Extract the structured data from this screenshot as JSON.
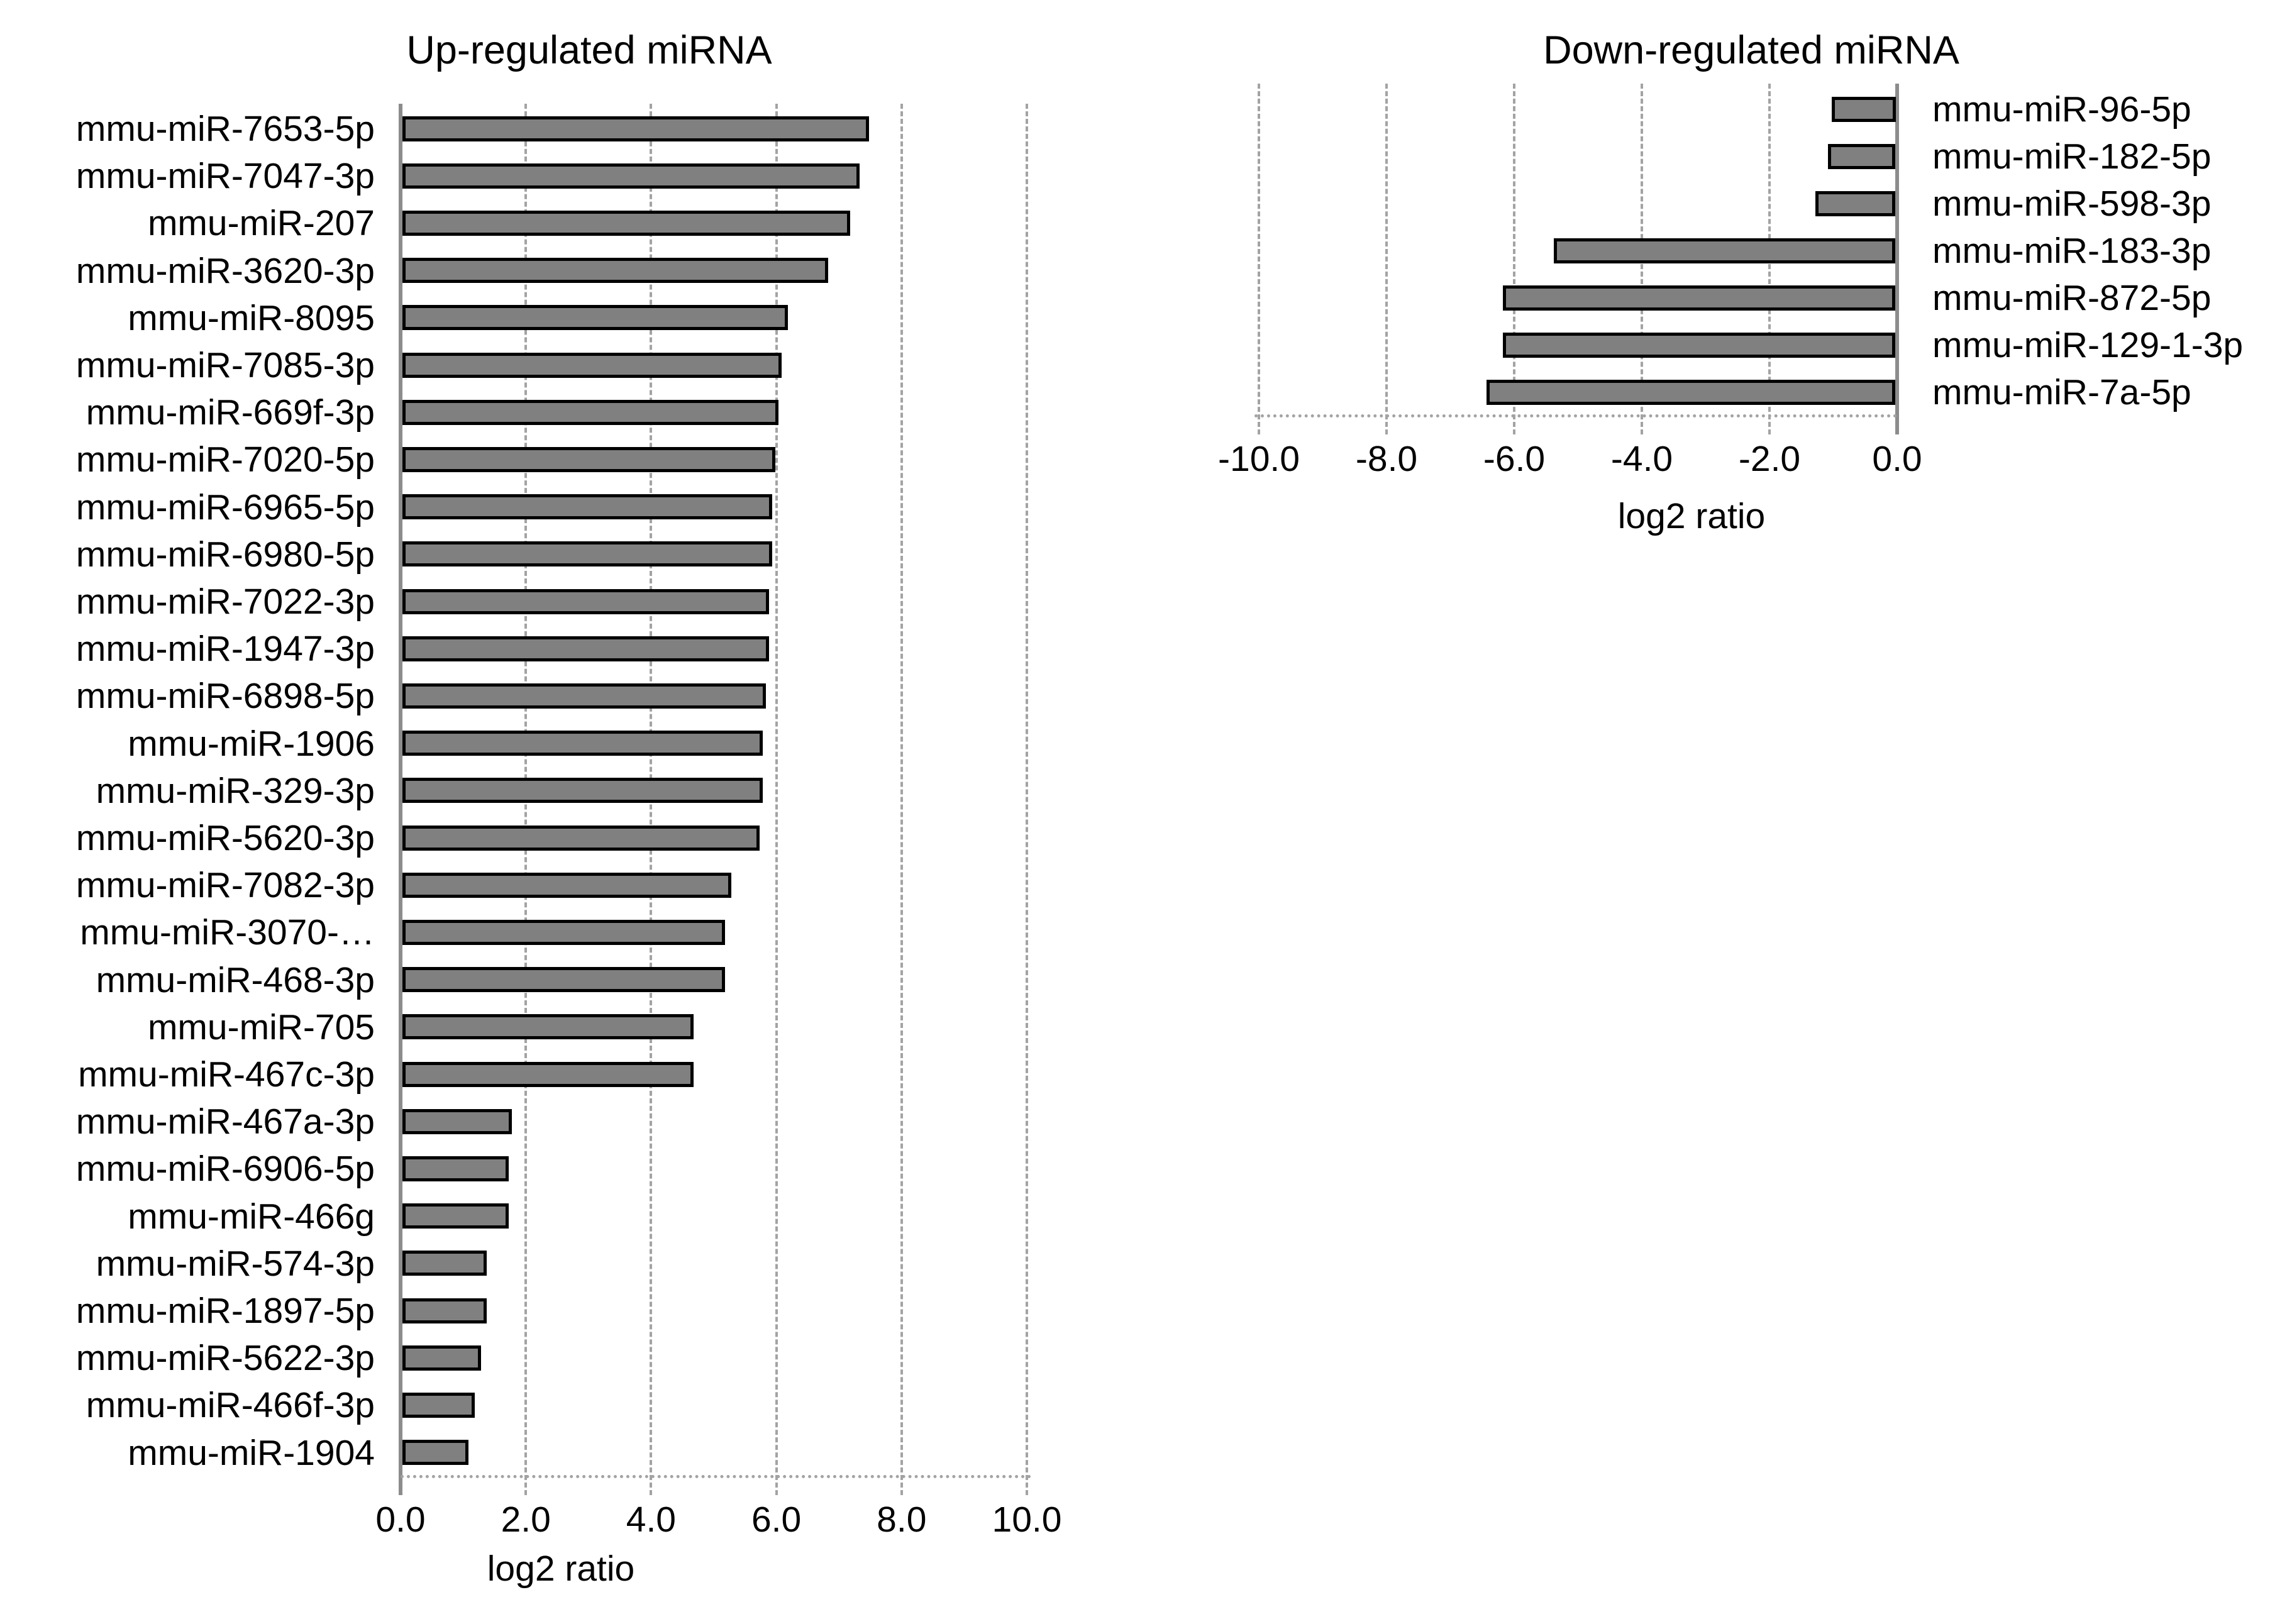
{
  "chart_data": [
    {
      "id": "up",
      "type": "bar",
      "orientation": "horizontal",
      "title": "Up-regulated miRNA",
      "xlabel": "log2 ratio",
      "xlim": [
        0,
        10
      ],
      "xticks": [
        0,
        2,
        4,
        6,
        8,
        10
      ],
      "xtick_labels": [
        "0.0",
        "2.0",
        "4.0",
        "6.0",
        "8.0",
        "10.0"
      ],
      "grid": "dashed-vertical",
      "legend": null,
      "categories": [
        "mmu-miR-7653-5p",
        "mmu-miR-7047-3p",
        "mmu-miR-207",
        "mmu-miR-3620-3p",
        "mmu-miR-8095",
        "mmu-miR-7085-3p",
        "mmu-miR-669f-3p",
        "mmu-miR-7020-5p",
        "mmu-miR-6965-5p",
        "mmu-miR-6980-5p",
        "mmu-miR-7022-3p",
        "mmu-miR-1947-3p",
        "mmu-miR-6898-5p",
        "mmu-miR-1906",
        "mmu-miR-329-3p",
        "mmu-miR-5620-3p",
        "mmu-miR-7082-3p",
        "mmu-miR-3070-…",
        "mmu-miR-468-3p",
        "mmu-miR-705",
        "mmu-miR-467c-3p",
        "mmu-miR-467a-3p",
        "mmu-miR-6906-5p",
        "mmu-miR-466g",
        "mmu-miR-574-3p",
        "mmu-miR-1897-5p",
        "mmu-miR-5622-3p",
        "mmu-miR-466f-3p",
        "mmu-miR-1904"
      ],
      "values": [
        7.45,
        7.3,
        7.15,
        6.8,
        6.15,
        6.05,
        6.0,
        5.95,
        5.9,
        5.9,
        5.85,
        5.85,
        5.8,
        5.75,
        5.75,
        5.7,
        5.25,
        5.15,
        5.15,
        4.65,
        4.65,
        1.75,
        1.7,
        1.7,
        1.35,
        1.35,
        1.25,
        1.15,
        1.05
      ]
    },
    {
      "id": "down",
      "type": "bar",
      "orientation": "horizontal",
      "title": "Down-regulated miRNA",
      "xlabel": "log2 ratio",
      "xlim": [
        -10,
        0
      ],
      "xticks": [
        -10,
        -8,
        -6,
        -4,
        -2,
        0
      ],
      "xtick_labels": [
        "-10.0",
        "-8.0",
        "-6.0",
        "-4.0",
        "-2.0",
        "0.0"
      ],
      "grid": "dashed-vertical",
      "legend": null,
      "categories": [
        "mmu-miR-96-5p",
        "mmu-miR-182-5p",
        "mmu-miR-598-3p",
        "mmu-miR-183-3p",
        "mmu-miR-872-5p",
        "mmu-miR-129-1-3p",
        "mmu-miR-7a-5p"
      ],
      "values": [
        -1.0,
        -1.05,
        -1.25,
        -5.35,
        -6.15,
        -6.15,
        -6.4
      ]
    }
  ],
  "colors": {
    "background": "#ffffff",
    "text": "#000000",
    "bar_fill": "#808080",
    "bar_border": "#000000",
    "gridline": "#a3a3a3",
    "axis_line": "#8c8c8c",
    "baseline_dotted": "#a3a3a3"
  }
}
